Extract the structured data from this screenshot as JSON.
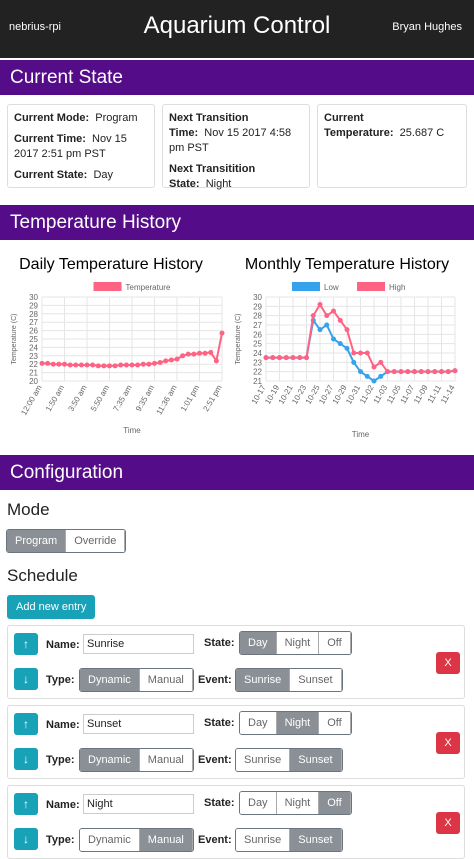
{
  "header": {
    "left": "nebrius-rpi",
    "title": "Aquarium Control",
    "right": "Bryan Hughes"
  },
  "current_state": {
    "title": "Current State",
    "cards": [
      [
        {
          "label": "Current Mode:",
          "value": "Program"
        },
        {
          "label": "Current Time:",
          "value": "Nov 15 2017 2:51 pm PST"
        },
        {
          "label": "Current State:",
          "value": "Day"
        }
      ],
      [
        {
          "label": "Next Transition Time:",
          "value": "Nov 15 2017 4:58 pm PST"
        },
        {
          "label": "Next Transitition State:",
          "value": "Night"
        }
      ],
      [
        {
          "label": "Current Temperature:",
          "value": "25.687 C"
        }
      ]
    ]
  },
  "temperature_history": {
    "title": "Temperature History",
    "chart_data": [
      {
        "type": "line",
        "title": "Daily Temperature History",
        "y_label": "Temperature (C)",
        "x_label": "Time",
        "categories": [
          "12:00 am",
          null,
          null,
          null,
          "1:50 am",
          null,
          null,
          null,
          "3:50 am",
          null,
          null,
          null,
          "5:50 am",
          null,
          null,
          null,
          "7:35 am",
          null,
          null,
          null,
          "9:35 am",
          null,
          null,
          null,
          "11:36 am",
          null,
          null,
          null,
          "1:01 pm",
          null,
          null,
          null,
          "2:51 pm"
        ],
        "series": [
          {
            "name": "Temperature",
            "color": "#ff6384",
            "values": [
              22.1,
              22.1,
              22.0,
              22.0,
              22.0,
              21.9,
              21.9,
              21.9,
              21.9,
              21.9,
              21.8,
              21.8,
              21.8,
              21.8,
              21.9,
              21.9,
              21.9,
              21.9,
              22.0,
              22.0,
              22.1,
              22.2,
              22.4,
              22.5,
              22.6,
              23.0,
              23.2,
              23.2,
              23.3,
              23.3,
              23.4,
              22.4,
              25.7
            ]
          }
        ],
        "ylim": [
          20,
          30
        ],
        "yticks": [
          20,
          21,
          22,
          23,
          24,
          25,
          26,
          27,
          28,
          29,
          30
        ],
        "grid": true
      },
      {
        "type": "line",
        "title": "Monthly Temperature History",
        "y_label": "Temperature (C)",
        "x_label": "Time",
        "categories": [
          "10-17",
          null,
          "10-19",
          null,
          "10-21",
          null,
          "10-23",
          null,
          "10-25",
          null,
          "10-27",
          null,
          "10-29",
          null,
          "10-31",
          null,
          "11-02",
          null,
          "11-03",
          null,
          "11-05",
          null,
          "11-07",
          null,
          "11-09",
          null,
          "11-11",
          null,
          "11-14"
        ],
        "series": [
          {
            "name": "Low",
            "color": "#36a2eb",
            "values": [
              23.5,
              23.5,
              23.5,
              23.5,
              23.5,
              23.5,
              23.5,
              27.5,
              26.5,
              27,
              25.5,
              25,
              24.5,
              23,
              22,
              21.5,
              21,
              21.5,
              22,
              22,
              22,
              22,
              22,
              22,
              22,
              22,
              22,
              22,
              22.1
            ]
          },
          {
            "name": "High",
            "color": "#ff6384",
            "values": [
              23.5,
              23.5,
              23.5,
              23.5,
              23.5,
              23.5,
              23.5,
              28,
              29.2,
              28,
              28.5,
              27.5,
              26.5,
              24,
              24,
              24,
              22.5,
              23,
              22,
              22,
              22,
              22,
              22,
              22,
              22,
              22,
              22,
              22,
              22.1
            ]
          }
        ],
        "ylim": [
          21,
          30
        ],
        "yticks": [
          21,
          22,
          23,
          24,
          25,
          26,
          27,
          28,
          29,
          30
        ],
        "grid": true
      }
    ]
  },
  "configuration": {
    "title": "Configuration",
    "mode_title": "Mode",
    "modes": [
      "Program",
      "Override"
    ],
    "mode": "Program",
    "schedule_title": "Schedule",
    "add_button": "Add new entry",
    "labels": {
      "name": "Name:",
      "state": "State:",
      "type": "Type:",
      "event": "Event:"
    },
    "state_options": [
      "Day",
      "Night",
      "Off"
    ],
    "type_options": [
      "Dynamic",
      "Manual"
    ],
    "event_options": [
      "Sunrise",
      "Sunset"
    ],
    "delete": "X",
    "entries": [
      {
        "name": "Sunrise",
        "state": "Day",
        "type": "Dynamic",
        "event": "Sunrise"
      },
      {
        "name": "Sunset",
        "state": "Night",
        "type": "Dynamic",
        "event": "Sunset"
      },
      {
        "name": "Night",
        "state": "Off",
        "type": "Manual",
        "event": "Sunset"
      }
    ]
  }
}
